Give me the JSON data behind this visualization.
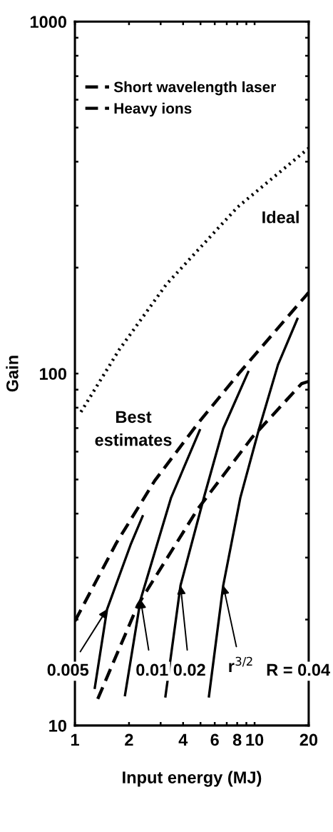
{
  "chart_data": {
    "type": "line",
    "xlabel": "Input energy (MJ)",
    "ylabel": "Gain",
    "log": "xy",
    "grid": false,
    "legend": "top left",
    "xlim": [
      1,
      20
    ],
    "ylim": [
      10,
      1000
    ],
    "xticks": [
      1,
      2,
      {
        "value": 3,
        "label": null
      },
      4,
      {
        "value": 5,
        "label": null
      },
      6,
      {
        "value": 7,
        "label": null
      },
      8,
      {
        "value": 9,
        "label": null
      },
      10,
      20
    ],
    "yticks": [
      10,
      {
        "value": 20,
        "label": null
      },
      {
        "value": 30,
        "label": null
      },
      {
        "value": 40,
        "label": null
      },
      {
        "value": 50,
        "label": null
      },
      {
        "value": 60,
        "label": null
      },
      {
        "value": 70,
        "label": null
      },
      {
        "value": 80,
        "label": null
      },
      {
        "value": 90,
        "label": null
      },
      100,
      {
        "value": 200,
        "label": null
      },
      {
        "value": 300,
        "label": null
      },
      {
        "value": 400,
        "label": null
      },
      {
        "value": 500,
        "label": null
      },
      {
        "value": 600,
        "label": null
      },
      {
        "value": 700,
        "label": null
      },
      {
        "value": 800,
        "label": null
      },
      {
        "value": 900,
        "label": null
      },
      1000
    ],
    "series": [
      {
        "name": "Short wavelength laser",
        "color": "#000000",
        "line_style": "dashed",
        "x": [
          1.34,
          2.24,
          4.82,
          9.65,
          18.3,
          20
        ],
        "values": [
          11.9,
          22,
          41.2,
          65.7,
          93.7,
          95
        ]
      },
      {
        "name": "Heavy ions",
        "color": "#000000",
        "line_style": "dashed",
        "x": [
          1.0,
          1.7,
          2.78,
          4.82,
          8.3,
          19.4,
          20
        ],
        "values": [
          19.8,
          33,
          49.6,
          72,
          101,
          167,
          170
        ]
      },
      {
        "color": "#000000",
        "line_style": "dotted",
        "x": [
          1.08,
          1.76,
          3.22,
          8.03,
          20
        ],
        "values": [
          77.8,
          116.7,
          179,
          297,
          437
        ]
      },
      {
        "color": "#000000",
        "line_style": "solid",
        "x": [
          1.29,
          1.51,
          2.04,
          2.38
        ],
        "values": [
          12.8,
          21.4,
          32.6,
          39.3
        ]
      },
      {
        "color": "#000000",
        "line_style": "solid",
        "x": [
          1.9,
          2.32,
          2.86,
          3.43,
          4.95
        ],
        "values": [
          12.2,
          22.8,
          32.6,
          44.4,
          69.0
        ]
      },
      {
        "color": "#000000",
        "line_style": "solid",
        "x": [
          3.19,
          3.87,
          5.27,
          6.69,
          9.21
        ],
        "values": [
          12.1,
          25.0,
          45.2,
          69.8,
          101
        ]
      },
      {
        "color": "#000000",
        "line_style": "solid",
        "x": [
          5.57,
          6.69,
          8.33,
          10.6,
          13.5,
          17.3
        ],
        "values": [
          12.1,
          25.0,
          44.4,
          69.8,
          106,
          143
        ]
      }
    ],
    "annotations": [
      "Ideal",
      "Best\nestimates",
      {
        "text": "0.005",
        "x": 1.51,
        "y": 21.4
      },
      {
        "text": "0.01",
        "x": 2.32,
        "y": 22.8
      },
      {
        "text": "0.02",
        "x": 3.87,
        "y": 25.0
      },
      {
        "text": "r$^{3/2}$",
        "x": 6.69,
        "y": 25.0
      },
      "R = 0.04"
    ]
  }
}
